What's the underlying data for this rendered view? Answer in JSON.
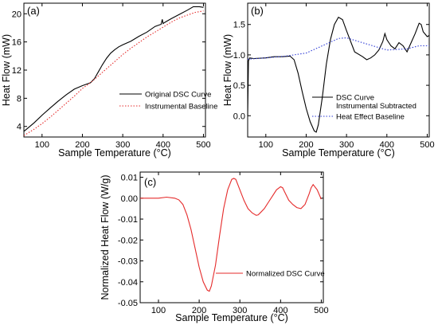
{
  "chart_data": [
    {
      "type": "line",
      "panel_label": "(a)",
      "xlabel": "Sample Temperature (°C)",
      "ylabel": "Heat  Flow  (mW)",
      "xlim": [
        55,
        505
      ],
      "ylim": [
        2.5,
        21.5
      ],
      "xticks": [
        100,
        200,
        300,
        400,
        500
      ],
      "yticks": [
        4,
        8,
        12,
        16,
        20
      ],
      "legend_position": "lower-right",
      "series": [
        {
          "name": "Original DSC Curve",
          "color": "#000000",
          "style": "solid",
          "x": [
            55,
            80,
            100,
            120,
            140,
            160,
            180,
            200,
            220,
            230,
            240,
            250,
            260,
            270,
            280,
            290,
            300,
            320,
            340,
            360,
            380,
            395,
            398,
            400,
            402,
            405,
            420,
            440,
            460,
            475,
            490,
            500
          ],
          "y": [
            3.3,
            4.5,
            5.6,
            6.6,
            7.6,
            8.5,
            9.3,
            9.8,
            10.2,
            10.8,
            11.8,
            12.8,
            13.7,
            14.4,
            14.9,
            15.3,
            15.6,
            16.1,
            16.8,
            17.4,
            18.2,
            18.5,
            19.2,
            18.6,
            18.7,
            18.8,
            19.3,
            19.9,
            20.5,
            21.0,
            21.0,
            20.9
          ]
        },
        {
          "name": "Instrumental Baseline",
          "color": "#e52b2b",
          "style": "dotted",
          "x": [
            55,
            80,
            100,
            120,
            140,
            160,
            180,
            200,
            220,
            240,
            260,
            280,
            300,
            320,
            340,
            360,
            380,
            400,
            420,
            440,
            460,
            480,
            500
          ],
          "y": [
            2.7,
            3.6,
            4.4,
            5.3,
            6.3,
            7.3,
            8.3,
            9.4,
            10.2,
            11.2,
            12.2,
            13.2,
            14.2,
            15.1,
            15.9,
            16.7,
            17.4,
            18.1,
            18.8,
            19.4,
            19.8,
            20.2,
            20.4
          ]
        }
      ]
    },
    {
      "type": "line",
      "panel_label": "(b)",
      "xlabel": "Sample Temperature (°C)",
      "ylabel": "Heat  Flow  (mW)",
      "xlim": [
        55,
        505
      ],
      "ylim": [
        -0.35,
        1.85
      ],
      "xticks": [
        100,
        200,
        300,
        400,
        500
      ],
      "yticks": [
        0.0,
        0.5,
        1.0,
        1.5
      ],
      "ytick_labels": [
        "0.0",
        "0.5",
        "1.0",
        "1.5"
      ],
      "legend_position": "lower-right",
      "series": [
        {
          "name": "DSC Curve\nInstrumental Subtracted",
          "color": "#000000",
          "style": "solid",
          "x": [
            55,
            57,
            60,
            70,
            100,
            120,
            140,
            160,
            170,
            180,
            190,
            200,
            210,
            220,
            225,
            230,
            240,
            250,
            260,
            270,
            280,
            290,
            300,
            320,
            340,
            350,
            360,
            370,
            380,
            390,
            395,
            400,
            410,
            420,
            430,
            440,
            450,
            460,
            470,
            480,
            485,
            490,
            500,
            505
          ],
          "y": [
            0.0,
            0.9,
            0.95,
            0.94,
            0.95,
            0.97,
            0.97,
            0.98,
            0.92,
            0.7,
            0.4,
            0.12,
            -0.1,
            -0.25,
            -0.27,
            -0.15,
            0.3,
            0.85,
            1.25,
            1.5,
            1.62,
            1.58,
            1.4,
            1.05,
            0.97,
            0.92,
            0.95,
            1.0,
            1.08,
            1.22,
            1.35,
            1.25,
            1.15,
            1.1,
            1.2,
            1.15,
            1.05,
            1.2,
            1.35,
            1.52,
            1.5,
            1.38,
            1.3,
            1.32
          ]
        },
        {
          "name": "Heat Effect Baseline",
          "color": "#2e3bd6",
          "style": "dotted",
          "x": [
            55,
            100,
            150,
            200,
            250,
            280,
            300,
            350,
            400,
            450,
            480,
            505
          ],
          "y": [
            0.93,
            0.95,
            0.98,
            1.03,
            1.18,
            1.27,
            1.28,
            1.18,
            1.08,
            1.1,
            1.15,
            1.15
          ]
        }
      ]
    },
    {
      "type": "line",
      "panel_label": "(c)",
      "xlabel": "Sample Temperature (°C)",
      "ylabel": "Normalized Heat Flow (W/g)",
      "xlim": [
        55,
        505
      ],
      "ylim": [
        -0.05,
        0.0125
      ],
      "xticks": [
        100,
        200,
        300,
        400,
        500
      ],
      "yticks": [
        -0.05,
        -0.04,
        -0.03,
        -0.02,
        -0.01,
        0.0,
        0.01
      ],
      "ytick_labels": [
        "-0.05",
        "-0.04",
        "-0.03",
        "-0.02",
        "-0.01",
        "0.00",
        "0.01"
      ],
      "legend_position": "center-right",
      "series": [
        {
          "name": "Normalized DSC Curve",
          "color": "#e52b2b",
          "style": "solid",
          "x": [
            55,
            80,
            100,
            120,
            140,
            150,
            160,
            170,
            180,
            190,
            200,
            210,
            220,
            225,
            230,
            240,
            250,
            260,
            270,
            280,
            285,
            290,
            300,
            310,
            320,
            330,
            340,
            345,
            350,
            360,
            370,
            380,
            390,
            400,
            405,
            410,
            420,
            430,
            440,
            450,
            460,
            470,
            475,
            480,
            490,
            500
          ],
          "y": [
            0.0,
            0.0,
            0.0,
            0.0005,
            0.0,
            -0.0008,
            -0.003,
            -0.008,
            -0.015,
            -0.024,
            -0.033,
            -0.04,
            -0.044,
            -0.0445,
            -0.042,
            -0.032,
            -0.018,
            -0.005,
            0.004,
            0.009,
            0.0095,
            0.009,
            0.004,
            -0.001,
            -0.005,
            -0.007,
            -0.0082,
            -0.008,
            -0.007,
            -0.005,
            -0.002,
            0.001,
            0.004,
            0.0055,
            0.005,
            0.003,
            -0.001,
            -0.003,
            -0.0045,
            -0.005,
            -0.003,
            0.002,
            0.005,
            0.0065,
            0.004,
            -0.0005
          ]
        }
      ]
    }
  ]
}
